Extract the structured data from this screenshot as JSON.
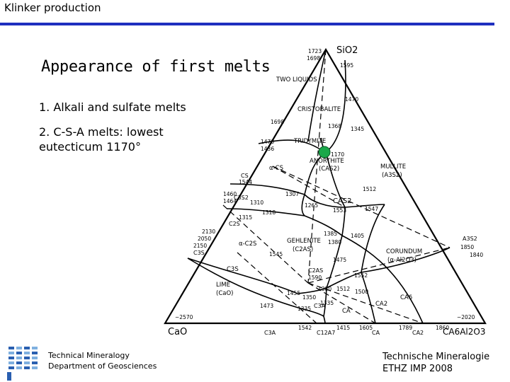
{
  "header": {
    "title": "Klinker production"
  },
  "slide": {
    "title": "Appearance of first melts",
    "bullet1": "1. Alkali and sulfate melts",
    "bullet2": "2. C-S-A melts: lowest eutecticum 1170°"
  },
  "footer": {
    "left_line1": "Technical Mineralogy",
    "left_line2": "Department of Geosciences",
    "right_line1": "Technische Mineralogie",
    "right_line2": "ETHZ IMP 2008"
  },
  "diagram": {
    "vertices": {
      "top": "SiO2",
      "left": "CaO",
      "right": "CA6Al2O3"
    },
    "fields": {
      "two_liquids": "TWO LIQUIDS",
      "cristobalite": "CRISTOBALITE",
      "tridymite": "TRIDYMITE",
      "alpha_cs": "α-CS",
      "anorthite": "ANORTHITE",
      "anorthite_formula": "(CAS2)",
      "mullite": "MULLITE",
      "mullite_formula": "(A3S2)",
      "cas2": "CAS2",
      "gehlenite": "GEHLENITE",
      "gehlenite_formula": "(C2AS)",
      "alpha_c2s": "α-C2S",
      "corundum": "CORUNDUM",
      "corundum_formula": "(α-Al2O3)",
      "lime": "LIME",
      "lime_formula": "(CaO)",
      "ca": "CA",
      "ca2": "CA2",
      "ca6": "CA6",
      "c3s_field": "C3S"
    },
    "compounds": {
      "cs": "CS",
      "c3s2": "C3S2",
      "c2s": "C2S",
      "c3s": "C3S",
      "c2as": "C2AS",
      "c3a_mid": "C3A",
      "a3s2": "A3S2",
      "c3a": "C3A",
      "c12a7": "C12A7",
      "ca_base": "CA",
      "ca2_base": "CA2"
    },
    "temps": {
      "t1723": "1723",
      "t1698a": "1698",
      "t1595": "1595",
      "t1470a": "1470",
      "t1698b": "1698",
      "t1368": "1368",
      "t1345": "1345",
      "t1470b": "1470",
      "t1436": "1436",
      "t1170": "1170",
      "t1544": "1544",
      "t1460": "1460",
      "t1464": "1464",
      "t1307": "1307",
      "t1310": "1310",
      "t1512a": "1512",
      "t1265": "1265",
      "t1553": "1553",
      "t1547": "1547",
      "t1318": "1318",
      "t1315": "1315",
      "t2130": "2130",
      "t2050": "2050",
      "t2150": "2150",
      "t1385": "1385",
      "t1405": "1405",
      "t1380a": "1380",
      "t1850": "1850",
      "t1840": "1840",
      "t1545": "1545",
      "t1475": "1475",
      "t1552": "1552",
      "t1590": "1590",
      "t1380b": "1380",
      "t1512b": "1512",
      "t1500": "1500",
      "t1455": "1455",
      "t1473": "1473",
      "t1350": "1350",
      "t1335a": "1335",
      "t1335b": "1335",
      "t2570": "~2570",
      "t1542": "1542",
      "t1415": "1415",
      "t1605": "1605",
      "t1789": "1789",
      "t1860": "1860",
      "t2020": "~2020"
    },
    "eutectic_color": "#1aa84a",
    "line_color": "#000000"
  },
  "logo": {
    "colors": [
      "#2a5fb0",
      "#7fb0e0"
    ]
  }
}
